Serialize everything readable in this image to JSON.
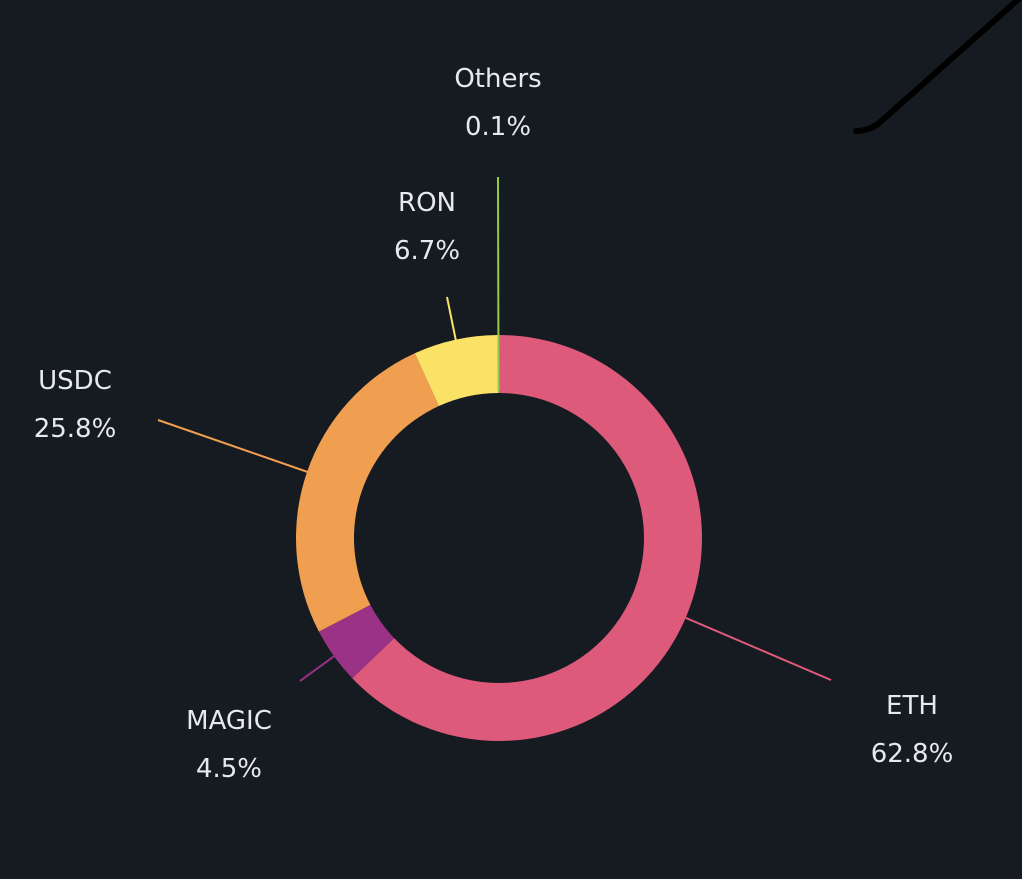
{
  "chart_data": {
    "type": "pie",
    "style": "donut",
    "title": "",
    "slices": [
      {
        "label": "ETH",
        "value": 62.8,
        "display": "62.8%",
        "color": "#de5a7b"
      },
      {
        "label": "MAGIC",
        "value": 4.5,
        "display": "4.5%",
        "color": "#9a3286"
      },
      {
        "label": "USDC",
        "value": 25.8,
        "display": "25.8%",
        "color": "#ef9f4f"
      },
      {
        "label": "RON",
        "value": 6.7,
        "display": "6.7%",
        "color": "#f9e265"
      },
      {
        "label": "Others",
        "value": 0.1,
        "display": "0.1%",
        "color": "#8fcd45"
      }
    ],
    "direction": "clockwise",
    "start_angle": "12 o'clock",
    "legend": "none",
    "labels": "outside with leader lines"
  },
  "colors": {
    "background": "#161b22",
    "text": "#e6e9ee"
  }
}
